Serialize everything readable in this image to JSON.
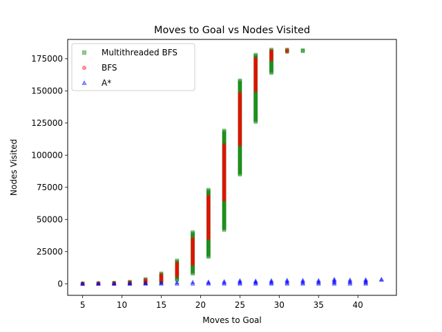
{
  "chart_data": {
    "type": "scatter",
    "title": "Moves to Goal vs Nodes Visited",
    "xlabel": "Moves to Goal",
    "ylabel": "Nodes Visited",
    "xlim": [
      3.1,
      44.9
    ],
    "ylim": [
      -9000,
      190000
    ],
    "xticks": [
      5,
      10,
      15,
      20,
      25,
      30,
      35,
      40
    ],
    "yticks": [
      0,
      25000,
      50000,
      75000,
      100000,
      125000,
      150000,
      175000
    ],
    "legend_position": "upper-left",
    "series": [
      {
        "name": "Multithreaded BFS",
        "marker": "square",
        "color": "#008000",
        "points": [
          {
            "x": 5,
            "min": 0,
            "max": 100
          },
          {
            "x": 7,
            "min": 0,
            "max": 300
          },
          {
            "x": 9,
            "min": 0,
            "max": 700
          },
          {
            "x": 11,
            "min": 100,
            "max": 1500
          },
          {
            "x": 13,
            "min": 400,
            "max": 3500
          },
          {
            "x": 15,
            "min": 1000,
            "max": 8000
          },
          {
            "x": 17,
            "min": 3000,
            "max": 18000
          },
          {
            "x": 19,
            "min": 8000,
            "max": 40000
          },
          {
            "x": 21,
            "min": 21000,
            "max": 73000
          },
          {
            "x": 23,
            "min": 42000,
            "max": 119000
          },
          {
            "x": 25,
            "min": 85000,
            "max": 158000
          },
          {
            "x": 27,
            "min": 126000,
            "max": 178000
          },
          {
            "x": 29,
            "min": 164000,
            "max": 182000
          },
          {
            "x": 31,
            "min": 180500,
            "max": 182000
          },
          {
            "x": 33,
            "min": 181000,
            "max": 181500
          }
        ]
      },
      {
        "name": "BFS",
        "marker": "circle",
        "color": "#ff0000",
        "points": [
          {
            "x": 5,
            "min": 0,
            "max": 100
          },
          {
            "x": 7,
            "min": 0,
            "max": 300
          },
          {
            "x": 9,
            "min": 0,
            "max": 500
          },
          {
            "x": 11,
            "min": 100,
            "max": 1200
          },
          {
            "x": 13,
            "min": 500,
            "max": 3000
          },
          {
            "x": 15,
            "min": 1500,
            "max": 7000
          },
          {
            "x": 17,
            "min": 6000,
            "max": 16000
          },
          {
            "x": 19,
            "min": 15000,
            "max": 35000
          },
          {
            "x": 21,
            "min": 35000,
            "max": 68000
          },
          {
            "x": 23,
            "min": 65000,
            "max": 108000
          },
          {
            "x": 25,
            "min": 108000,
            "max": 148000
          },
          {
            "x": 27,
            "min": 150000,
            "max": 175000
          },
          {
            "x": 29,
            "min": 174000,
            "max": 181000
          },
          {
            "x": 31,
            "min": 180500,
            "max": 181500
          }
        ]
      },
      {
        "name": "A*",
        "marker": "triangle",
        "color": "#0000ff",
        "points": [
          {
            "x": 5,
            "min": 0,
            "max": 100
          },
          {
            "x": 7,
            "min": 0,
            "max": 200
          },
          {
            "x": 9,
            "min": 0,
            "max": 300
          },
          {
            "x": 11,
            "min": 0,
            "max": 400
          },
          {
            "x": 13,
            "min": 0,
            "max": 500
          },
          {
            "x": 15,
            "min": 0,
            "max": 700
          },
          {
            "x": 17,
            "min": 0,
            "max": 1000
          },
          {
            "x": 19,
            "min": 0,
            "max": 1200
          },
          {
            "x": 21,
            "min": 0,
            "max": 1500
          },
          {
            "x": 23,
            "min": 0,
            "max": 1800
          },
          {
            "x": 25,
            "min": 0,
            "max": 2500
          },
          {
            "x": 27,
            "min": 0,
            "max": 2200
          },
          {
            "x": 29,
            "min": 0,
            "max": 2500
          },
          {
            "x": 31,
            "min": 0,
            "max": 2800
          },
          {
            "x": 33,
            "min": 0,
            "max": 2700
          },
          {
            "x": 35,
            "min": 0,
            "max": 2600
          },
          {
            "x": 37,
            "min": 0,
            "max": 3500
          },
          {
            "x": 39,
            "min": 0,
            "max": 3000
          },
          {
            "x": 41,
            "min": 0,
            "max": 3200
          },
          {
            "x": 43,
            "min": 3000,
            "max": 3500
          }
        ]
      }
    ]
  }
}
